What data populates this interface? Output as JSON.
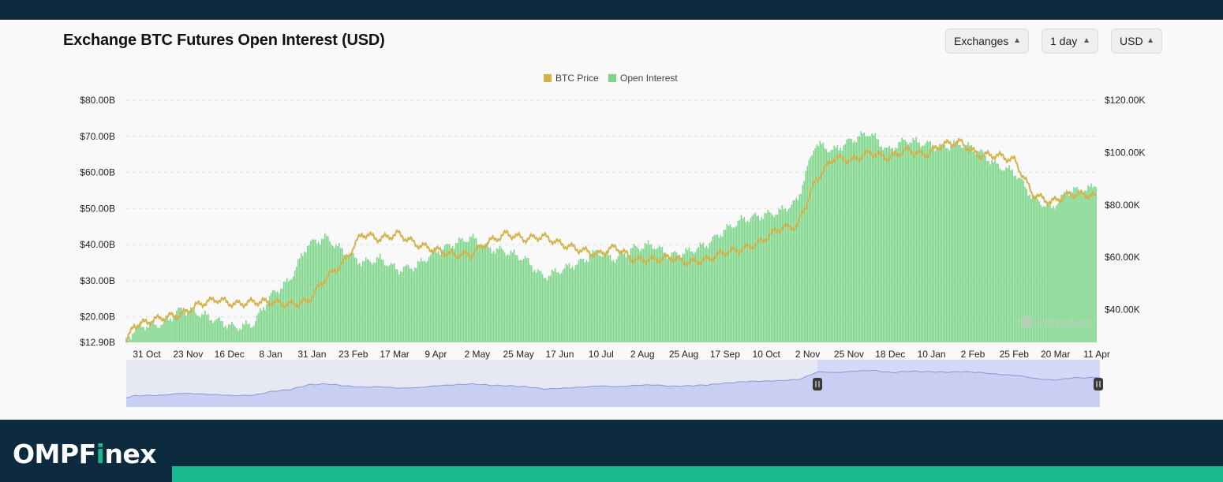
{
  "title": "Exchange BTC Futures Open Interest (USD)",
  "controls": [
    {
      "label": "Exchanges"
    },
    {
      "label": "1 day"
    },
    {
      "label": "USD"
    }
  ],
  "brand": {
    "prefix": "OMPF",
    "accent": "i",
    "suffix": "nex",
    "accent_color": "#19b88e"
  },
  "watermark": "coinglass",
  "chart_data": {
    "type": "bar",
    "legend_position": "top-center",
    "legend": [
      {
        "name": "BTC Price",
        "color": "#d4b24c"
      },
      {
        "name": "Open Interest",
        "color": "#7dd68a"
      }
    ],
    "y_left": {
      "ticks": [
        "$80.00B",
        "$70.00B",
        "$60.00B",
        "$50.00B",
        "$40.00B",
        "$30.00B",
        "$20.00B",
        "$12.90B"
      ],
      "range": [
        12.9,
        80
      ]
    },
    "y_right": {
      "ticks": [
        "$120.00K",
        "$100.00K",
        "$80.00K",
        "$60.00K",
        "$40.00K"
      ],
      "range": [
        27.5,
        120
      ]
    },
    "x_ticks": [
      "31 Oct",
      "23 Nov",
      "16 Dec",
      "8 Jan",
      "31 Jan",
      "23 Feb",
      "17 Mar",
      "9 Apr",
      "2 May",
      "25 May",
      "17 Jun",
      "10 Jul",
      "2 Aug",
      "25 Aug",
      "17 Sep",
      "10 Oct",
      "2 Nov",
      "25 Nov",
      "18 Dec",
      "10 Jan",
      "2 Feb",
      "25 Feb",
      "20 Mar",
      "11 Apr"
    ],
    "grid": "horizontal-dashed",
    "series": [
      {
        "name": "Open Interest",
        "axis": "left",
        "unit": "B USD",
        "anchors": [
          [
            0,
            12.9
          ],
          [
            10,
            16.5
          ],
          [
            23,
            17.5
          ],
          [
            46,
            18
          ],
          [
            69,
            22
          ],
          [
            92,
            21
          ],
          [
            115,
            19
          ],
          [
            138,
            17
          ],
          [
            161,
            18
          ],
          [
            184,
            26
          ],
          [
            207,
            30
          ],
          [
            230,
            40
          ],
          [
            253,
            42
          ],
          [
            276,
            38
          ],
          [
            299,
            35
          ],
          [
            322,
            36
          ],
          [
            345,
            33
          ],
          [
            368,
            34
          ],
          [
            391,
            38
          ],
          [
            414,
            40
          ],
          [
            437,
            42
          ],
          [
            460,
            39
          ],
          [
            483,
            38
          ],
          [
            506,
            36
          ],
          [
            529,
            31
          ],
          [
            552,
            33
          ],
          [
            575,
            35
          ],
          [
            598,
            38
          ],
          [
            621,
            36
          ],
          [
            644,
            39
          ],
          [
            667,
            40
          ],
          [
            690,
            37
          ],
          [
            713,
            38
          ],
          [
            736,
            40
          ],
          [
            759,
            44
          ],
          [
            782,
            47
          ],
          [
            805,
            48
          ],
          [
            828,
            49
          ],
          [
            851,
            52
          ],
          [
            874,
            68
          ],
          [
            897,
            66
          ],
          [
            920,
            69
          ],
          [
            943,
            71
          ],
          [
            966,
            66
          ],
          [
            989,
            69
          ],
          [
            1012,
            68
          ],
          [
            1035,
            67
          ],
          [
            1058,
            68
          ],
          [
            1081,
            66
          ],
          [
            1104,
            62
          ],
          [
            1127,
            60
          ],
          [
            1150,
            53
          ],
          [
            1173,
            50
          ],
          [
            1196,
            55
          ],
          [
            1219,
            55
          ],
          [
            1230,
            57
          ]
        ]
      },
      {
        "name": "BTC Price",
        "axis": "right",
        "unit": "K USD",
        "anchors": [
          [
            0,
            27.5
          ],
          [
            10,
            34
          ],
          [
            23,
            35
          ],
          [
            46,
            37
          ],
          [
            69,
            38
          ],
          [
            92,
            42
          ],
          [
            115,
            44
          ],
          [
            138,
            42
          ],
          [
            161,
            43
          ],
          [
            184,
            43
          ],
          [
            207,
            42
          ],
          [
            230,
            43
          ],
          [
            253,
            52
          ],
          [
            276,
            58
          ],
          [
            299,
            69
          ],
          [
            322,
            67
          ],
          [
            345,
            69
          ],
          [
            368,
            65
          ],
          [
            391,
            63
          ],
          [
            414,
            61
          ],
          [
            437,
            61
          ],
          [
            460,
            66
          ],
          [
            483,
            69
          ],
          [
            506,
            67
          ],
          [
            529,
            68
          ],
          [
            552,
            65
          ],
          [
            575,
            63
          ],
          [
            598,
            61
          ],
          [
            621,
            64
          ],
          [
            644,
            59
          ],
          [
            667,
            59
          ],
          [
            690,
            60
          ],
          [
            713,
            58
          ],
          [
            736,
            59
          ],
          [
            759,
            62
          ],
          [
            782,
            63
          ],
          [
            805,
            66
          ],
          [
            828,
            71
          ],
          [
            851,
            72
          ],
          [
            874,
            89
          ],
          [
            897,
            98
          ],
          [
            920,
            97
          ],
          [
            943,
            100
          ],
          [
            966,
            98
          ],
          [
            989,
            101
          ],
          [
            1012,
            99
          ],
          [
            1035,
            103
          ],
          [
            1058,
            104
          ],
          [
            1081,
            99
          ],
          [
            1104,
            99
          ],
          [
            1127,
            97
          ],
          [
            1150,
            84
          ],
          [
            1173,
            81
          ],
          [
            1196,
            84
          ],
          [
            1219,
            84
          ],
          [
            1230,
            83
          ]
        ]
      }
    ],
    "navigator": {
      "selected_range": [
        "2 Nov",
        "11 Apr"
      ]
    }
  }
}
